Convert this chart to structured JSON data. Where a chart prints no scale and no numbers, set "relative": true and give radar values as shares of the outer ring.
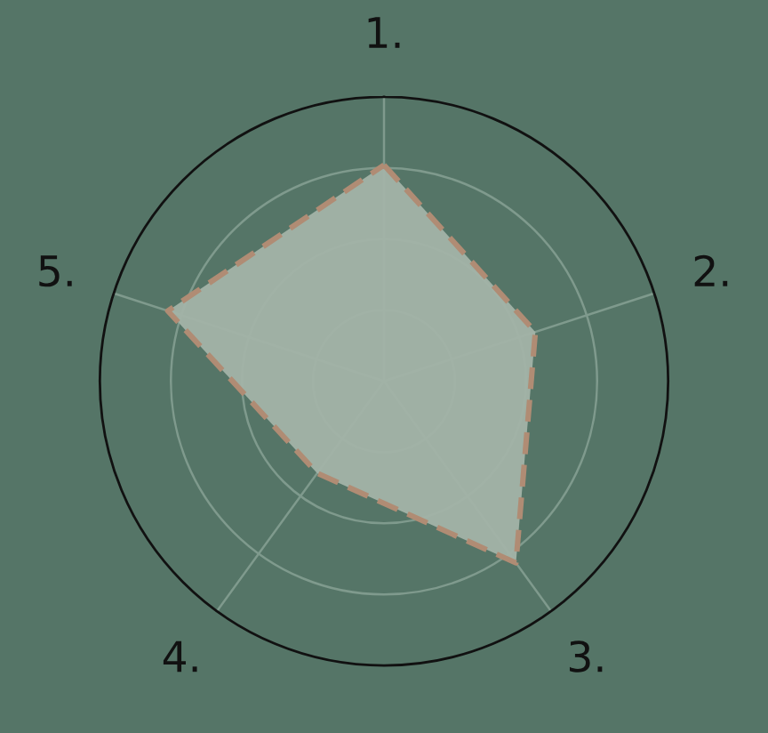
{
  "chart_data": {
    "type": "radar",
    "categories": [
      "1.",
      "2.",
      "3.",
      "4.",
      "5."
    ],
    "relative": true,
    "grid": true,
    "line_style": "dashed",
    "marker": "none",
    "series": [
      {
        "color": "#b08c74",
        "values": [
          0.76,
          0.56,
          0.79,
          0.4,
          0.8
        ]
      }
    ]
  }
}
